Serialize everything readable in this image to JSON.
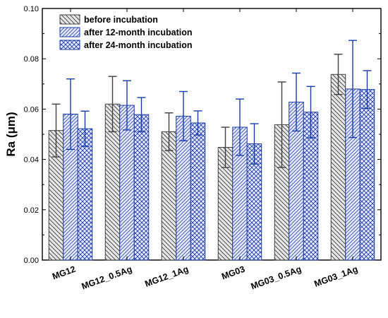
{
  "chart_data": {
    "type": "bar",
    "title": "",
    "xlabel": "",
    "ylabel": "Ra (μm)",
    "ylim": [
      0,
      0.1
    ],
    "yticks": [
      "0.00",
      "0.02",
      "0.04",
      "0.06",
      "0.08",
      "0.10"
    ],
    "categories": [
      "MG12",
      "MG12_0.5Ag",
      "MG12_1Ag",
      "MG03",
      "MG03_0.5Ag",
      "MG03_1Ag"
    ],
    "legend_position": "top-left",
    "grid": false,
    "series": [
      {
        "name": "before incubation",
        "values": [
          0.0515,
          0.062,
          0.051,
          0.0448,
          0.0538,
          0.0738
        ],
        "errors": [
          0.0105,
          0.011,
          0.0075,
          0.008,
          0.017,
          0.008
        ],
        "color": "#404040",
        "fill": "#e8e8e8",
        "pattern": "hatch-back"
      },
      {
        "name": "after 12-month incubation",
        "values": [
          0.058,
          0.0615,
          0.0572,
          0.0528,
          0.0628,
          0.068
        ],
        "errors": [
          0.014,
          0.0098,
          0.0098,
          0.0112,
          0.0115,
          0.0193
        ],
        "color": "#1a3aa8",
        "fill": "#e6e9ff",
        "pattern": "hatch-forward"
      },
      {
        "name": "after 24-month incubation",
        "values": [
          0.0522,
          0.0578,
          0.0545,
          0.0462,
          0.0588,
          0.0678
        ],
        "errors": [
          0.007,
          0.0068,
          0.0048,
          0.008,
          0.0102,
          0.0075
        ],
        "color": "#1a3aa8",
        "fill": "#e6e9ff",
        "pattern": "crosshatch"
      }
    ]
  }
}
